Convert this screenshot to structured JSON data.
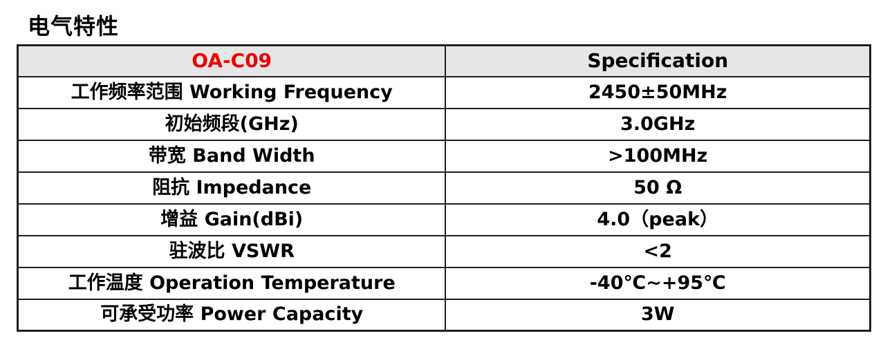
{
  "page": {
    "section_title": "电气特性"
  },
  "colors": {
    "accent_red": "#ee0000",
    "header_bg": "#e7e6e6",
    "border": "#1f1f1f",
    "text": "#000000"
  },
  "table": {
    "header": {
      "model": "OA-C09",
      "spec": "Specification"
    },
    "rows": [
      {
        "parameter": "工作频率范围 Working Frequency",
        "value": "2450±50MHz"
      },
      {
        "parameter": "初始频段(GHz)",
        "value": "3.0GHz"
      },
      {
        "parameter": "带宽 Band Width",
        "value": ">100MHz"
      },
      {
        "parameter": "阻抗 Impedance",
        "value": "50 Ω"
      },
      {
        "parameter": "增益 Gain(dBi)",
        "value": "4.0（peak）"
      },
      {
        "parameter": "驻波比 VSWR",
        "value": "<2"
      },
      {
        "parameter": "工作温度 Operation Temperature",
        "value": "-40℃~+95℃"
      },
      {
        "parameter": "可承受功率 Power Capacity",
        "value": "3W"
      }
    ]
  }
}
